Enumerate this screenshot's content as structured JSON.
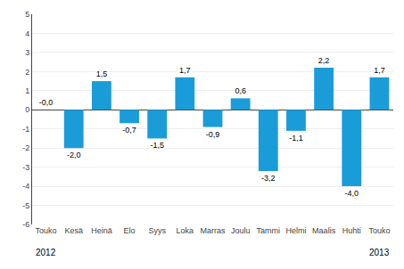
{
  "chart_data": {
    "type": "bar",
    "categories": [
      "Touko",
      "Kesä",
      "Heinä",
      "Elo",
      "Syys",
      "Loka",
      "Marras",
      "Joulu",
      "Tammi",
      "Helmi",
      "Maalis",
      "Huhti",
      "Touko"
    ],
    "values": [
      -0.0,
      -2.0,
      1.5,
      -0.7,
      -1.5,
      1.7,
      -0.9,
      0.6,
      -3.2,
      -1.1,
      2.2,
      -4.0,
      1.7
    ],
    "value_labels": [
      "-0,0",
      "-2,0",
      "1,5",
      "-0,7",
      "-1,5",
      "1,7",
      "-0,9",
      "0,6",
      "-3,2",
      "-1,1",
      "2,2",
      "-4,0",
      "1,7"
    ],
    "data_labels": true,
    "color": "#1a9cd8",
    "ylim": [
      -6,
      5
    ],
    "yticks": [
      -6,
      -5,
      -4,
      -3,
      -2,
      -1,
      0,
      1,
      2,
      3,
      4,
      5
    ],
    "grid": true,
    "annotations": [
      {
        "text": "2012",
        "x": 0
      },
      {
        "text": "2013",
        "x": 12
      }
    ]
  }
}
